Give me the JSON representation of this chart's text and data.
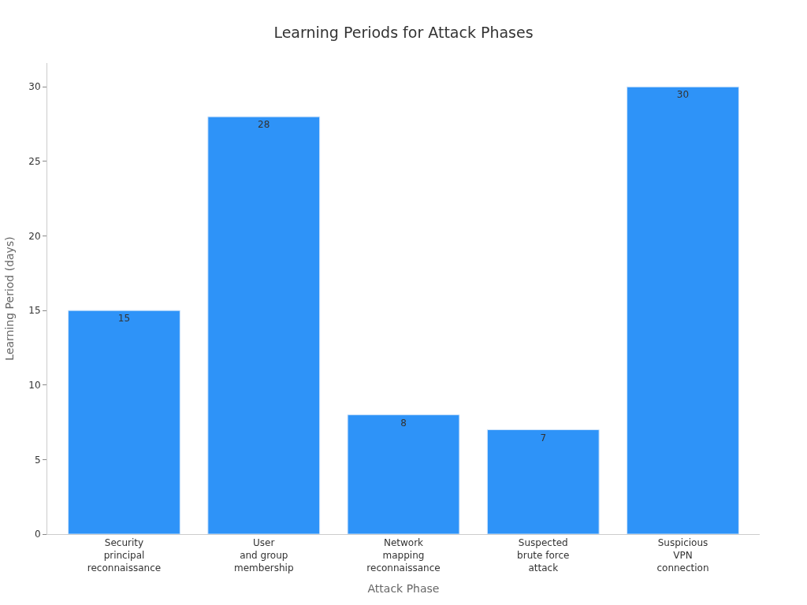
{
  "chart_data": {
    "type": "bar",
    "title": "Learning Periods for Attack Phases",
    "xlabel": "Attack Phase",
    "ylabel": "Learning Period (days)",
    "categories": [
      "Security\nprincipal\nreconnaissance",
      "User\nand group\nmembership",
      "Network\nmapping\nreconnaissance",
      "Suspected\nbrute force\nattack",
      "Suspicious\nVPN\nconnection"
    ],
    "values": [
      15,
      28,
      8,
      7,
      30
    ],
    "color": "#2e93f8",
    "data_labels": true,
    "ylim": [
      0,
      31.6
    ],
    "yticks": [
      0,
      5,
      10,
      15,
      20,
      25,
      30
    ]
  }
}
